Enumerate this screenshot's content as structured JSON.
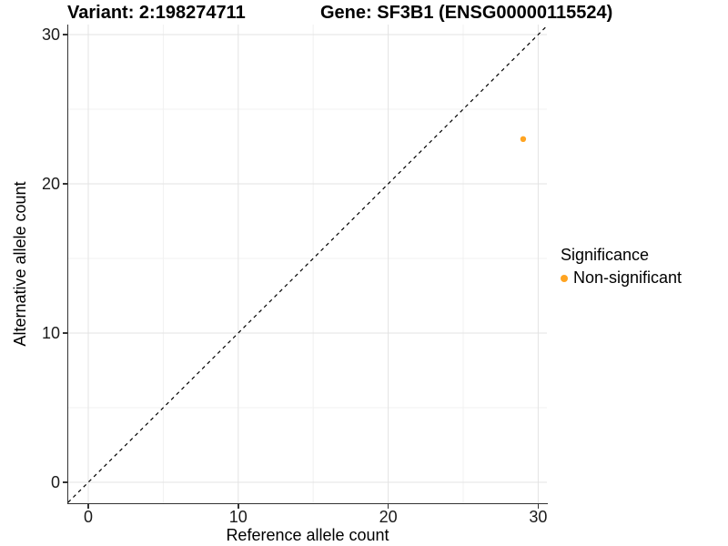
{
  "header": {
    "variant_title": "Variant: 2:198274711",
    "gene_title": "Gene: SF3B1 (ENSG00000115524)"
  },
  "axes": {
    "x_label": "Reference allele count",
    "y_label": "Alternative allele count",
    "x_tick_labels": [
      "0",
      "10",
      "20",
      "30"
    ],
    "y_tick_labels": [
      "0",
      "10",
      "20",
      "30"
    ]
  },
  "legend": {
    "title": "Significance",
    "items": [
      {
        "label": "Non-significant",
        "color": "#FFA421"
      }
    ]
  },
  "colors": {
    "point_orange": "#FFA421",
    "axis_line": "#333333",
    "major_grid": "#e3e3e3",
    "minor_grid": "#f1f1f1",
    "reference_line": "#000000"
  },
  "chart_data": {
    "type": "scatter",
    "title": "Variant: 2:198274711 | Gene: SF3B1 (ENSG00000115524)",
    "xlabel": "Reference allele count",
    "ylabel": "Alternative allele count",
    "xlim": [
      -1.35,
      30.65
    ],
    "ylim": [
      -1.35,
      30.65
    ],
    "x_ticks": [
      0,
      10,
      20,
      30
    ],
    "y_ticks": [
      0,
      10,
      20,
      30
    ],
    "x_minor_ticks": [
      5,
      15,
      25
    ],
    "y_minor_ticks": [
      5,
      15,
      25
    ],
    "grid": "major and minor gridlines on, light gray",
    "legend_position": "right",
    "legend_title": "Significance",
    "series": [
      {
        "name": "Non-significant",
        "color": "#FFA421",
        "points": [
          {
            "x": 29,
            "y": 23
          }
        ]
      }
    ],
    "reference_line": {
      "type": "identity y=x",
      "style": "dashed",
      "color": "#000000"
    }
  }
}
